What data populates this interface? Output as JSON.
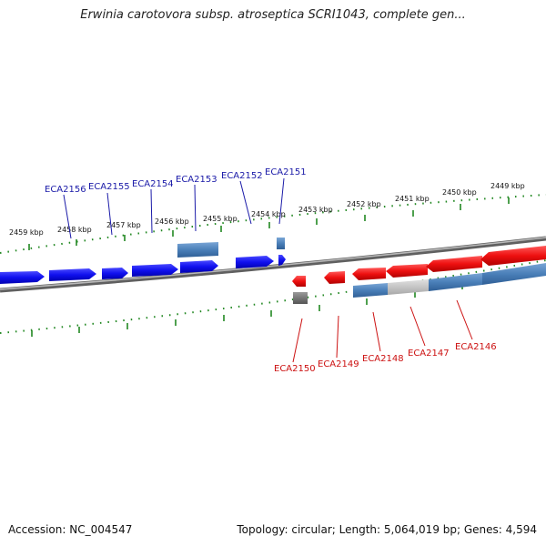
{
  "title": "Erwinia carotovora subsp. atroseptica SCRI1043, complete gen...",
  "footer": {
    "accession": "Accession: NC_004547",
    "topology": "Topology: circular; Length: 5,064,019 bp; Genes: 4,594"
  },
  "colors": {
    "forward_gene": "#1010ee",
    "reverse_gene": "#ee1010",
    "forward_label": "#1a1aa8",
    "reverse_label": "#cc1111",
    "cds_feature": "#4a7fb8",
    "tick": "#228822",
    "backbone": "#808080"
  },
  "scale_labels": [
    "2459 kbp",
    "2458 kbp",
    "2457 kbp",
    "2456 kbp",
    "2455 kbp",
    "2454 kbp",
    "2453 kbp",
    "2452 kbp",
    "2451 kbp",
    "2450 kbp",
    "2449 kbp"
  ],
  "forward_genes": [
    "ECA2156",
    "ECA2155",
    "ECA2154",
    "ECA2153",
    "ECA2152",
    "ECA2151"
  ],
  "reverse_genes": [
    "ECA2150",
    "ECA2149",
    "ECA2148",
    "ECA2147",
    "ECA2146"
  ]
}
